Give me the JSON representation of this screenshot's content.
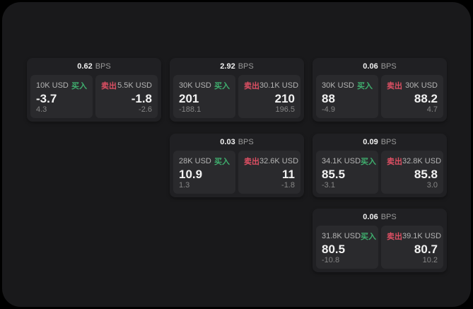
{
  "labels": {
    "bps_unit": "BPS",
    "buy": "买入",
    "sell": "卖出"
  },
  "colors": {
    "buy_green": "#3fae6e",
    "sell_red": "#dd4f63",
    "panel_background": "#19191b",
    "card_background": "#202023",
    "pane_background": "#2a2a2d"
  },
  "cards": [
    {
      "bps": "0.62",
      "buy": {
        "amount": "10K USD",
        "price": "-3.7",
        "delta": "4.3"
      },
      "sell": {
        "amount": "5.5K USD",
        "price": "-1.8",
        "delta": "-2.6"
      }
    },
    {
      "bps": "2.92",
      "buy": {
        "amount": "30K USD",
        "price": "201",
        "delta": "-188.1"
      },
      "sell": {
        "amount": "30.1K USD",
        "price": "210",
        "delta": "196.5"
      }
    },
    {
      "bps": "0.06",
      "buy": {
        "amount": "30K USD",
        "price": "88",
        "delta": "-4.9"
      },
      "sell": {
        "amount": "30K USD",
        "price": "88.2",
        "delta": "4.7"
      }
    },
    {
      "bps": "0.03",
      "buy": {
        "amount": "28K USD",
        "price": "10.9",
        "delta": "1.3"
      },
      "sell": {
        "amount": "32.6K USD",
        "price": "11",
        "delta": "-1.8"
      }
    },
    {
      "bps": "0.09",
      "buy": {
        "amount": "34.1K USD",
        "price": "85.5",
        "delta": "-3.1"
      },
      "sell": {
        "amount": "32.8K USD",
        "price": "85.8",
        "delta": "3.0"
      }
    },
    {
      "bps": "0.06",
      "buy": {
        "amount": "31.8K USD",
        "price": "80.5",
        "delta": "-10.8"
      },
      "sell": {
        "amount": "39.1K USD",
        "price": "80.7",
        "delta": "10.2"
      }
    }
  ]
}
